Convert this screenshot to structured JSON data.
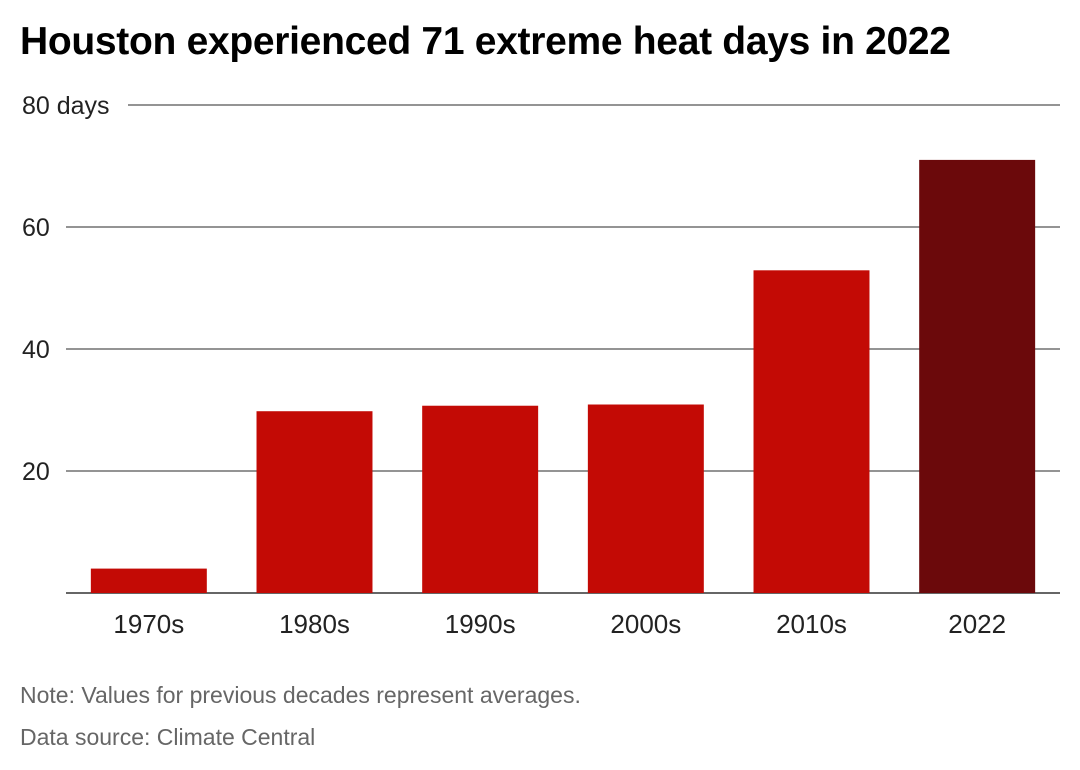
{
  "title": "Houston experienced 71 extreme heat days in 2022",
  "note": "Note: Values for previous decades represent averages.",
  "source": "Data source: Climate Central",
  "colors": {
    "bar": "#c30a05",
    "highlight": "#6b090b",
    "grid": "#555555",
    "text": "#222222"
  },
  "chart_data": {
    "type": "bar",
    "title": "Houston experienced 71 extreme heat days in 2022",
    "categories": [
      "1970s",
      "1980s",
      "1990s",
      "2000s",
      "2010s",
      "2022"
    ],
    "values": [
      4,
      29.8,
      30.7,
      30.9,
      52.9,
      71
    ],
    "highlight_index": 5,
    "ylim": [
      0,
      80
    ],
    "yticks": [
      20,
      40,
      60,
      80
    ],
    "ytick_labels": [
      "20",
      "40",
      "60",
      "80 days"
    ],
    "xlabel": "",
    "ylabel": "",
    "grid": true,
    "legend": "none"
  }
}
